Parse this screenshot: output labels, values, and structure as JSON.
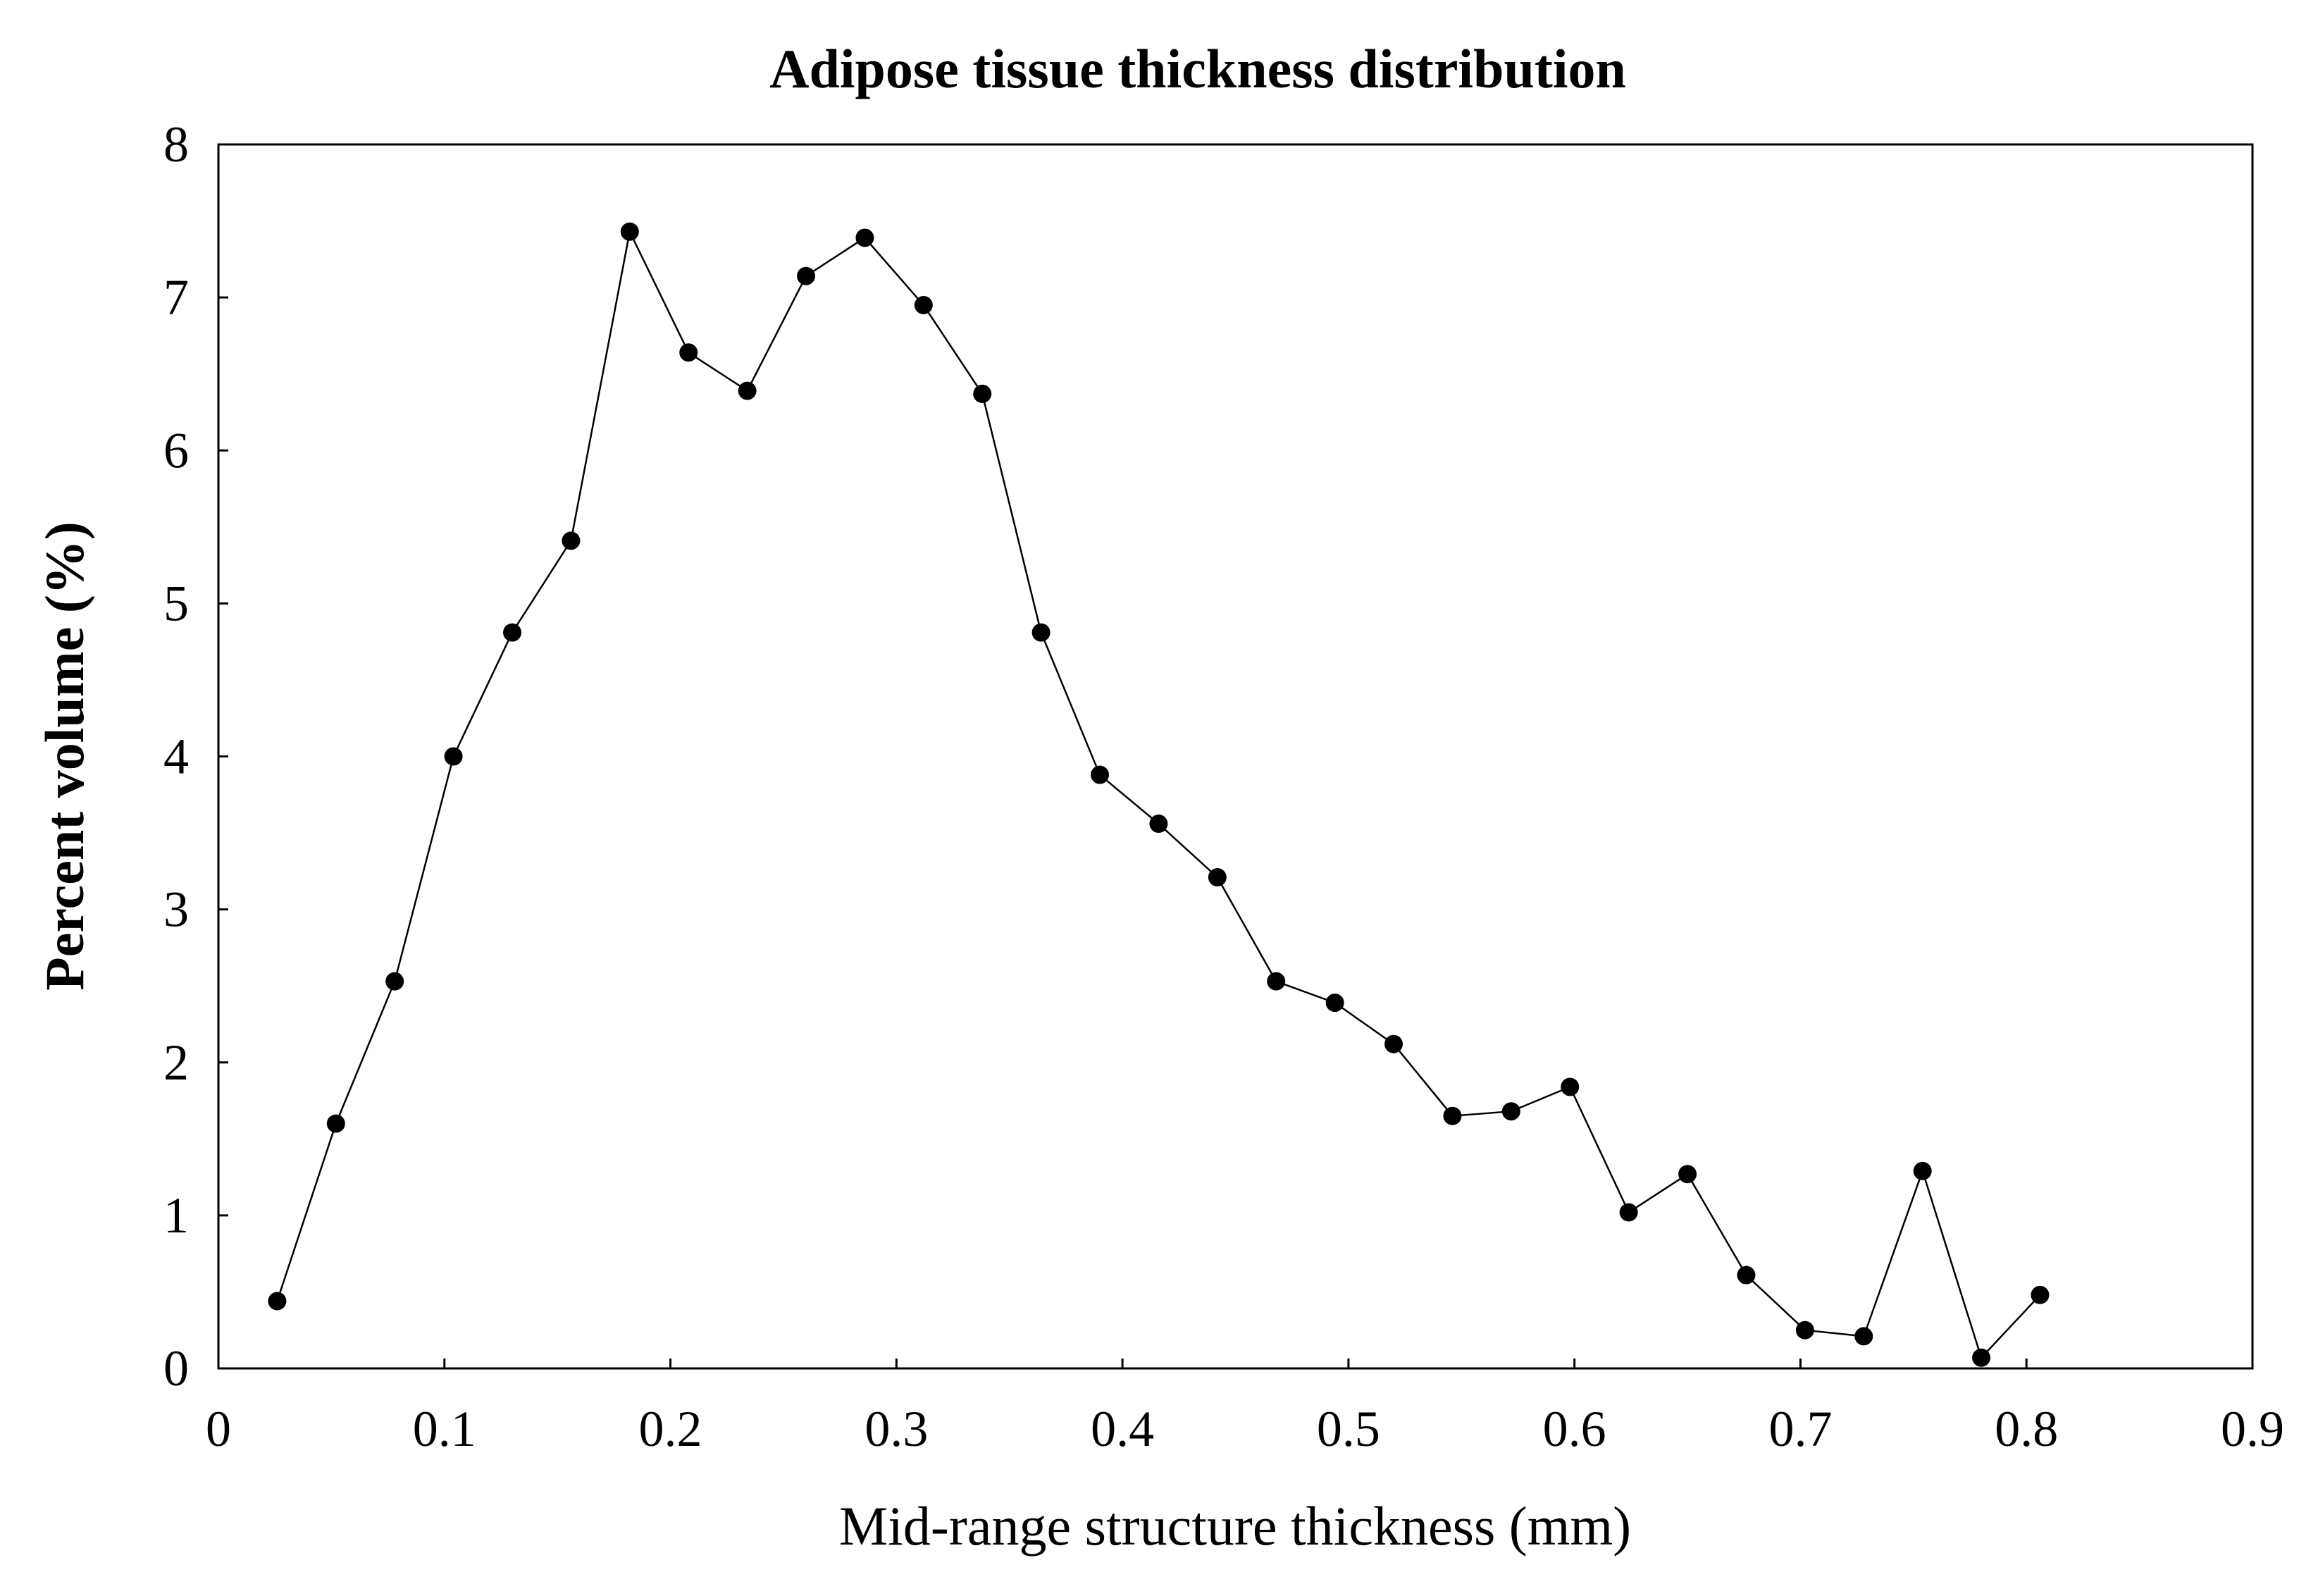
{
  "chart_data": {
    "type": "line",
    "title": "Adipose tissue thickness distribution",
    "xlabel": "Mid-range structure thickness (mm)",
    "ylabel": "Percent volume (%)",
    "xlim": [
      0,
      0.9
    ],
    "ylim": [
      0,
      8
    ],
    "x_ticks": [
      "0",
      "0.1",
      "0.2",
      "0.3",
      "0.4",
      "0.5",
      "0.6",
      "0.7",
      "0.8",
      "0.9"
    ],
    "y_ticks": [
      "0",
      "1",
      "2",
      "3",
      "4",
      "5",
      "6",
      "7",
      "8"
    ],
    "grid": false,
    "legend": "none",
    "marker": "filled-circle",
    "series": [
      {
        "name": "Percent volume",
        "color": "#000000",
        "x": [
          0.026,
          0.052,
          0.078,
          0.104,
          0.13,
          0.156,
          0.182,
          0.208,
          0.234,
          0.26,
          0.286,
          0.312,
          0.338,
          0.364,
          0.39,
          0.416,
          0.442,
          0.468,
          0.494,
          0.52,
          0.546,
          0.572,
          0.598,
          0.624,
          0.65,
          0.676,
          0.702,
          0.728,
          0.754,
          0.78,
          0.806
        ],
        "y": [
          0.44,
          1.6,
          2.53,
          4.0,
          4.81,
          5.41,
          7.43,
          6.64,
          6.39,
          7.14,
          7.39,
          6.95,
          6.37,
          4.81,
          3.88,
          3.56,
          3.21,
          2.53,
          2.39,
          2.12,
          1.65,
          1.68,
          1.84,
          1.02,
          1.27,
          0.61,
          0.25,
          0.21,
          1.29,
          0.07,
          0.48
        ]
      }
    ]
  }
}
